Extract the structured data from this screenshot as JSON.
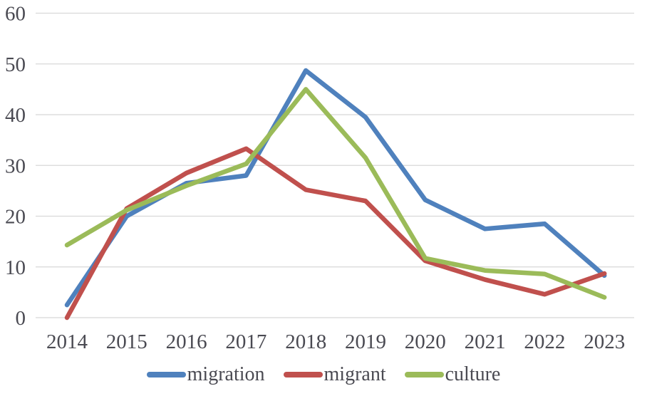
{
  "chart_data": {
    "type": "line",
    "title": "",
    "xlabel": "",
    "ylabel": "",
    "categories": [
      "2014",
      "2015",
      "2016",
      "2017",
      "2018",
      "2019",
      "2020",
      "2021",
      "2022",
      "2023"
    ],
    "series": [
      {
        "name": "migration",
        "color": "#4F81BD",
        "values": [
          2.5,
          20,
          26.5,
          28,
          48.7,
          39.5,
          23.2,
          17.5,
          18.5,
          8.3
        ]
      },
      {
        "name": "migrant",
        "color": "#C0504D",
        "values": [
          0,
          21.5,
          28.5,
          33.3,
          25.2,
          23,
          11.2,
          7.5,
          4.6,
          8.7
        ]
      },
      {
        "name": "culture",
        "color": "#9BBB59",
        "values": [
          14.3,
          21.2,
          26,
          30.3,
          45,
          31.5,
          11.7,
          9.3,
          8.6,
          4
        ]
      }
    ],
    "ylim": [
      0,
      60
    ],
    "yticks": [
      0,
      10,
      20,
      30,
      40,
      50,
      60
    ],
    "grid": "horizontal",
    "gridline_color": "#d8d8d8",
    "axis_text_color": "#4a4a52",
    "legend_position": "bottom",
    "line_width": 6.5
  }
}
